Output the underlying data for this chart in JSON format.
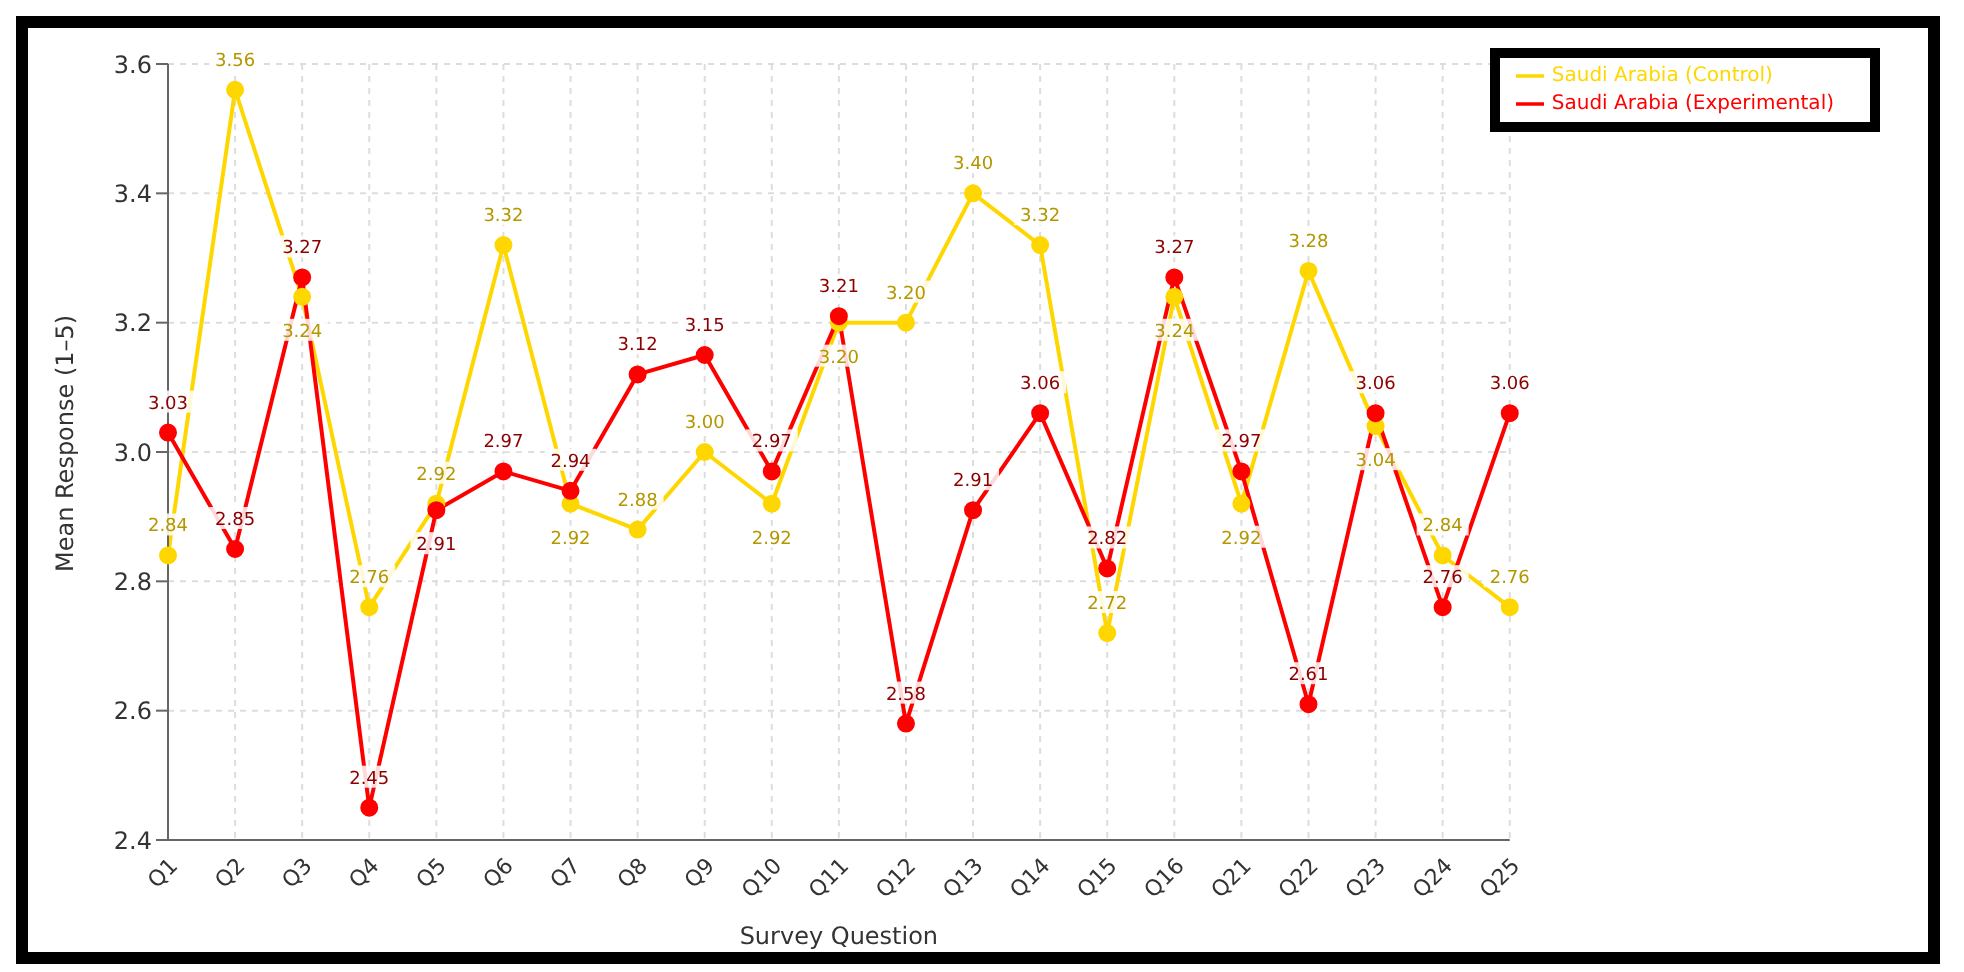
{
  "chart_data": {
    "type": "line",
    "xlabel": "Survey Question",
    "ylabel": "Mean Response (1–5)",
    "categories": [
      "Q1",
      "Q2",
      "Q3",
      "Q4",
      "Q5",
      "Q6",
      "Q7",
      "Q8",
      "Q9",
      "Q10",
      "Q11",
      "Q12",
      "Q13",
      "Q14",
      "Q15",
      "Q16",
      "Q21",
      "Q22",
      "Q23",
      "Q24",
      "Q25"
    ],
    "series": [
      {
        "name": "Saudi Arabia (Control)",
        "color": "#ffd700",
        "values": [
          2.84,
          3.56,
          3.24,
          2.76,
          2.92,
          3.32,
          2.92,
          2.88,
          3.0,
          2.92,
          3.2,
          3.2,
          3.4,
          3.32,
          2.72,
          3.24,
          2.92,
          3.28,
          3.04,
          2.84,
          2.76
        ],
        "value_labels": [
          "2.84",
          "3.56",
          "3.24",
          "2.76",
          "2.92",
          "3.32",
          "2.92",
          "2.88",
          "3.00",
          "2.92",
          "3.20",
          "3.20",
          "3.40",
          "3.32",
          "2.72",
          "3.24",
          "2.92",
          "3.28",
          "3.04",
          "2.84",
          "2.76"
        ]
      },
      {
        "name": "Saudi Arabia (Experimental)",
        "color": "#ff0000",
        "values": [
          3.03,
          2.85,
          3.27,
          2.45,
          2.91,
          2.97,
          2.94,
          3.12,
          3.15,
          2.97,
          3.21,
          2.58,
          2.91,
          3.06,
          2.82,
          3.27,
          2.97,
          2.61,
          3.06,
          2.76,
          3.06
        ],
        "value_labels": [
          "3.03",
          "2.85",
          "3.27",
          "2.45",
          "2.91",
          "2.97",
          "2.94",
          "3.12",
          "3.15",
          "2.97",
          "3.21",
          "2.58",
          "2.91",
          "3.06",
          "2.82",
          "3.27",
          "2.97",
          "2.61",
          "3.06",
          "2.76",
          "3.06"
        ]
      }
    ],
    "ylim": [
      2.4,
      3.6
    ],
    "yticks": [
      2.4,
      2.6,
      2.8,
      {
        "value": 3.0,
        "label": "3.0"
      },
      3.2,
      3.4,
      3.6
    ],
    "grid": true,
    "legend": "top right",
    "marker": "circle",
    "line_style": "solid"
  }
}
